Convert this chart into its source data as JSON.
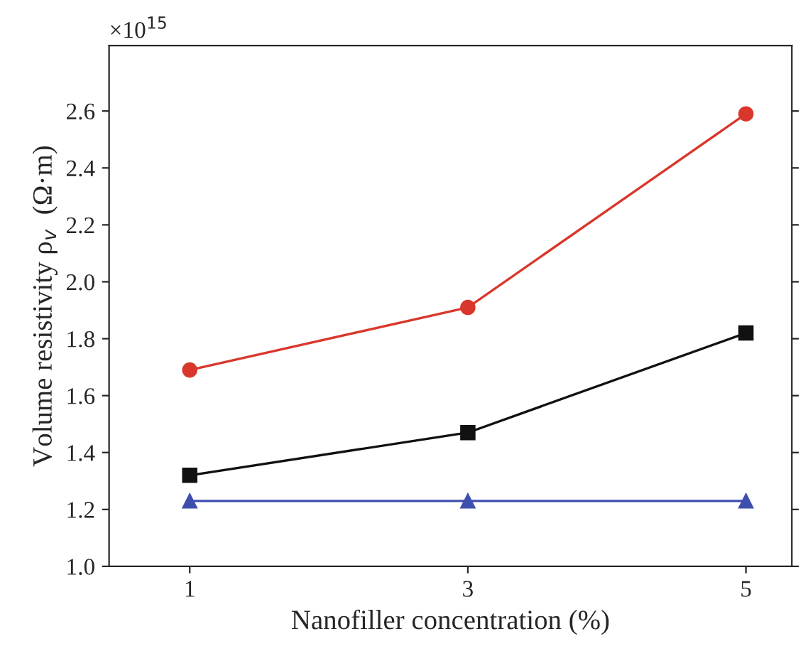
{
  "chart_data": {
    "type": "line",
    "xlabel": "Nanofiller concentration (%)",
    "ylabel": "Volume resistivity ρ$_{v}$  (Ω·m)",
    "annotations": [
      "×10$^{15}$"
    ],
    "x": [
      1,
      3,
      5
    ],
    "series": [
      {
        "color": "#d9372b",
        "marker": "circle",
        "values": [
          1.69,
          1.91,
          2.59
        ]
      },
      {
        "color": "#111111",
        "marker": "square",
        "values": [
          1.32,
          1.47,
          1.82
        ]
      },
      {
        "color": "#3f4fae",
        "marker": "triangle",
        "values": [
          1.23,
          1.23,
          1.23
        ]
      }
    ],
    "xlim": [
      0.42,
      5.33
    ],
    "xticks": [
      1,
      3,
      5
    ],
    "ylim": [
      1.0,
      2.83
    ],
    "yticks": [
      {
        "value": 1.0,
        "label": "1.0"
      },
      {
        "value": 1.2,
        "label": "1.2"
      },
      {
        "value": 1.4,
        "label": "1.4"
      },
      {
        "value": 1.6,
        "label": "1.6"
      },
      {
        "value": 1.8,
        "label": "1.8"
      },
      {
        "value": 2.0,
        "label": "2.0"
      },
      {
        "value": 2.2,
        "label": "2.2"
      },
      {
        "value": 2.4,
        "label": "2.4"
      },
      {
        "value": 2.6,
        "label": "2.6"
      }
    ],
    "grid": false,
    "legend": false,
    "line_style": "solid"
  }
}
